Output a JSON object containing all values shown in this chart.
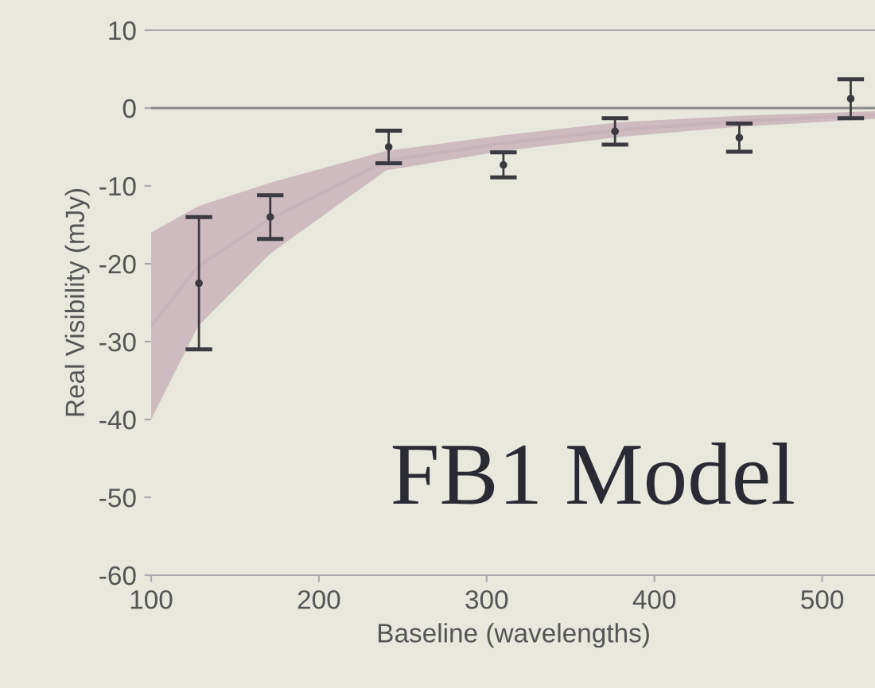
{
  "chart_data": {
    "type": "scatter",
    "xlabel": "Baseline (wavelengths)",
    "ylabel": "Real Visibility (mJy)",
    "xlim": [
      100,
      532
    ],
    "ylim": [
      -60,
      10
    ],
    "xticks": [
      100,
      200,
      300,
      400,
      500
    ],
    "yticks": [
      -60,
      -50,
      -40,
      -30,
      -20,
      -10,
      0,
      10
    ],
    "grid": false,
    "ref_lines": [
      {
        "axis": "y",
        "value": 0,
        "color": "#8a8a88"
      }
    ],
    "annotations": [
      "FB1 Model"
    ],
    "series": [
      {
        "type": "line",
        "marker": "none",
        "color": "#c9b3bb",
        "x": [
          100,
          128,
          171,
          240,
          310,
          380,
          450,
          532
        ],
        "values": [
          -28,
          -20.3,
          -14.2,
          -6.8,
          -4.5,
          -2.8,
          -1.7,
          -0.9
        ],
        "upper": [
          -16,
          -12.6,
          -9.6,
          -5.5,
          -3.5,
          -1.8,
          -1,
          -0.4
        ],
        "lower": [
          -40,
          -28,
          -18.7,
          -8,
          -5.5,
          -3.7,
          -2.4,
          -1.4
        ]
      },
      {
        "marker": "circle",
        "color": "#3a3a40",
        "x": [
          128.5,
          171,
          241.6,
          310,
          376.5,
          450.6,
          517
        ],
        "values": [
          -22.5,
          -14,
          -5,
          -7.3,
          -3,
          -3.8,
          1.2
        ],
        "errors": [
          8.5,
          2.8,
          2.1,
          1.6,
          1.7,
          1.8,
          2.5
        ]
      }
    ]
  }
}
